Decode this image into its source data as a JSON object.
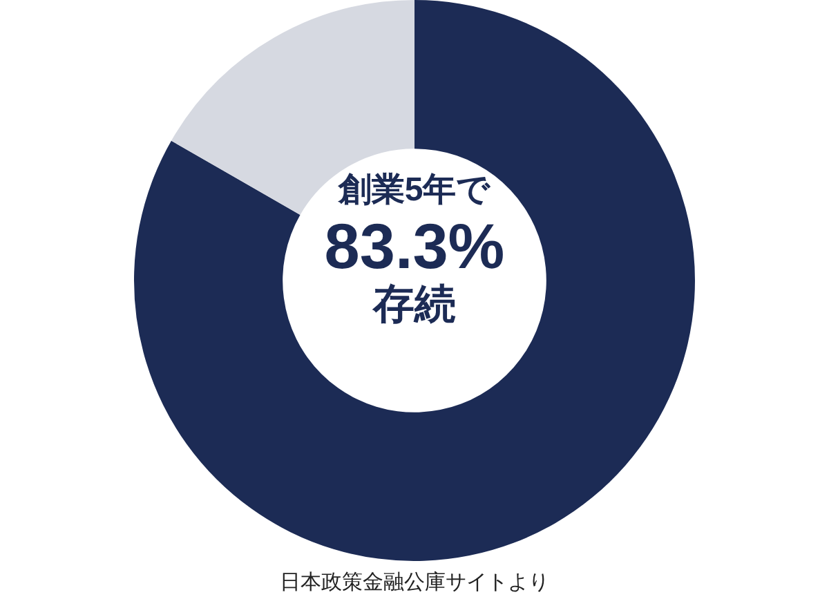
{
  "chart_data": {
    "type": "donut",
    "categories": [
      null,
      null
    ],
    "values": [
      83.3,
      16.7
    ],
    "colors": [
      "#1c2b55",
      "#d6d9e1"
    ],
    "legend": false,
    "annotations": [
      "創業5年で",
      "83.3%",
      "存続",
      "日本政策金融公庫サイトより"
    ]
  }
}
